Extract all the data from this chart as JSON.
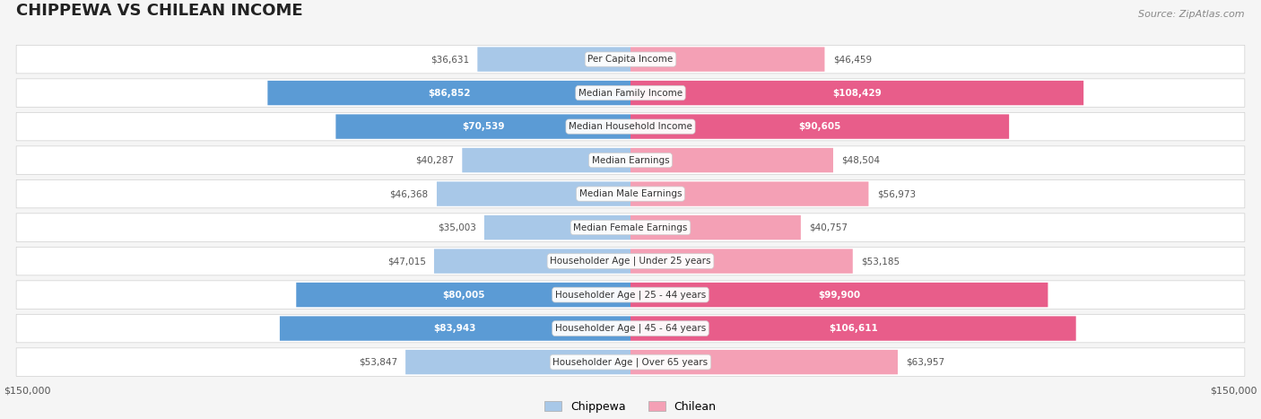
{
  "title": "CHIPPEWA VS CHILEAN INCOME",
  "source": "Source: ZipAtlas.com",
  "categories": [
    "Per Capita Income",
    "Median Family Income",
    "Median Household Income",
    "Median Earnings",
    "Median Male Earnings",
    "Median Female Earnings",
    "Householder Age | Under 25 years",
    "Householder Age | 25 - 44 years",
    "Householder Age | 45 - 64 years",
    "Householder Age | Over 65 years"
  ],
  "chippewa_values": [
    36631,
    86852,
    70539,
    40287,
    46368,
    35003,
    47015,
    80005,
    83943,
    53847
  ],
  "chilean_values": [
    46459,
    108429,
    90605,
    48504,
    56973,
    40757,
    53185,
    99900,
    106611,
    63957
  ],
  "chippewa_labels": [
    "$36,631",
    "$86,852",
    "$70,539",
    "$40,287",
    "$46,368",
    "$35,003",
    "$47,015",
    "$80,005",
    "$83,943",
    "$53,847"
  ],
  "chilean_labels": [
    "$46,459",
    "$108,429",
    "$90,605",
    "$48,504",
    "$56,973",
    "$40,757",
    "$53,185",
    "$99,900",
    "$106,611",
    "$63,957"
  ],
  "chippewa_color_light": "#a8c8e8",
  "chippewa_color_dark": "#5b9bd5",
  "chilean_color_light": "#f4a0b5",
  "chilean_color_dark": "#e85d8a",
  "max_value": 150000,
  "background_color": "#f5f5f5",
  "row_bg_color": "#ffffff",
  "legend_chippewa": "Chippewa",
  "legend_chilean": "Chilean"
}
